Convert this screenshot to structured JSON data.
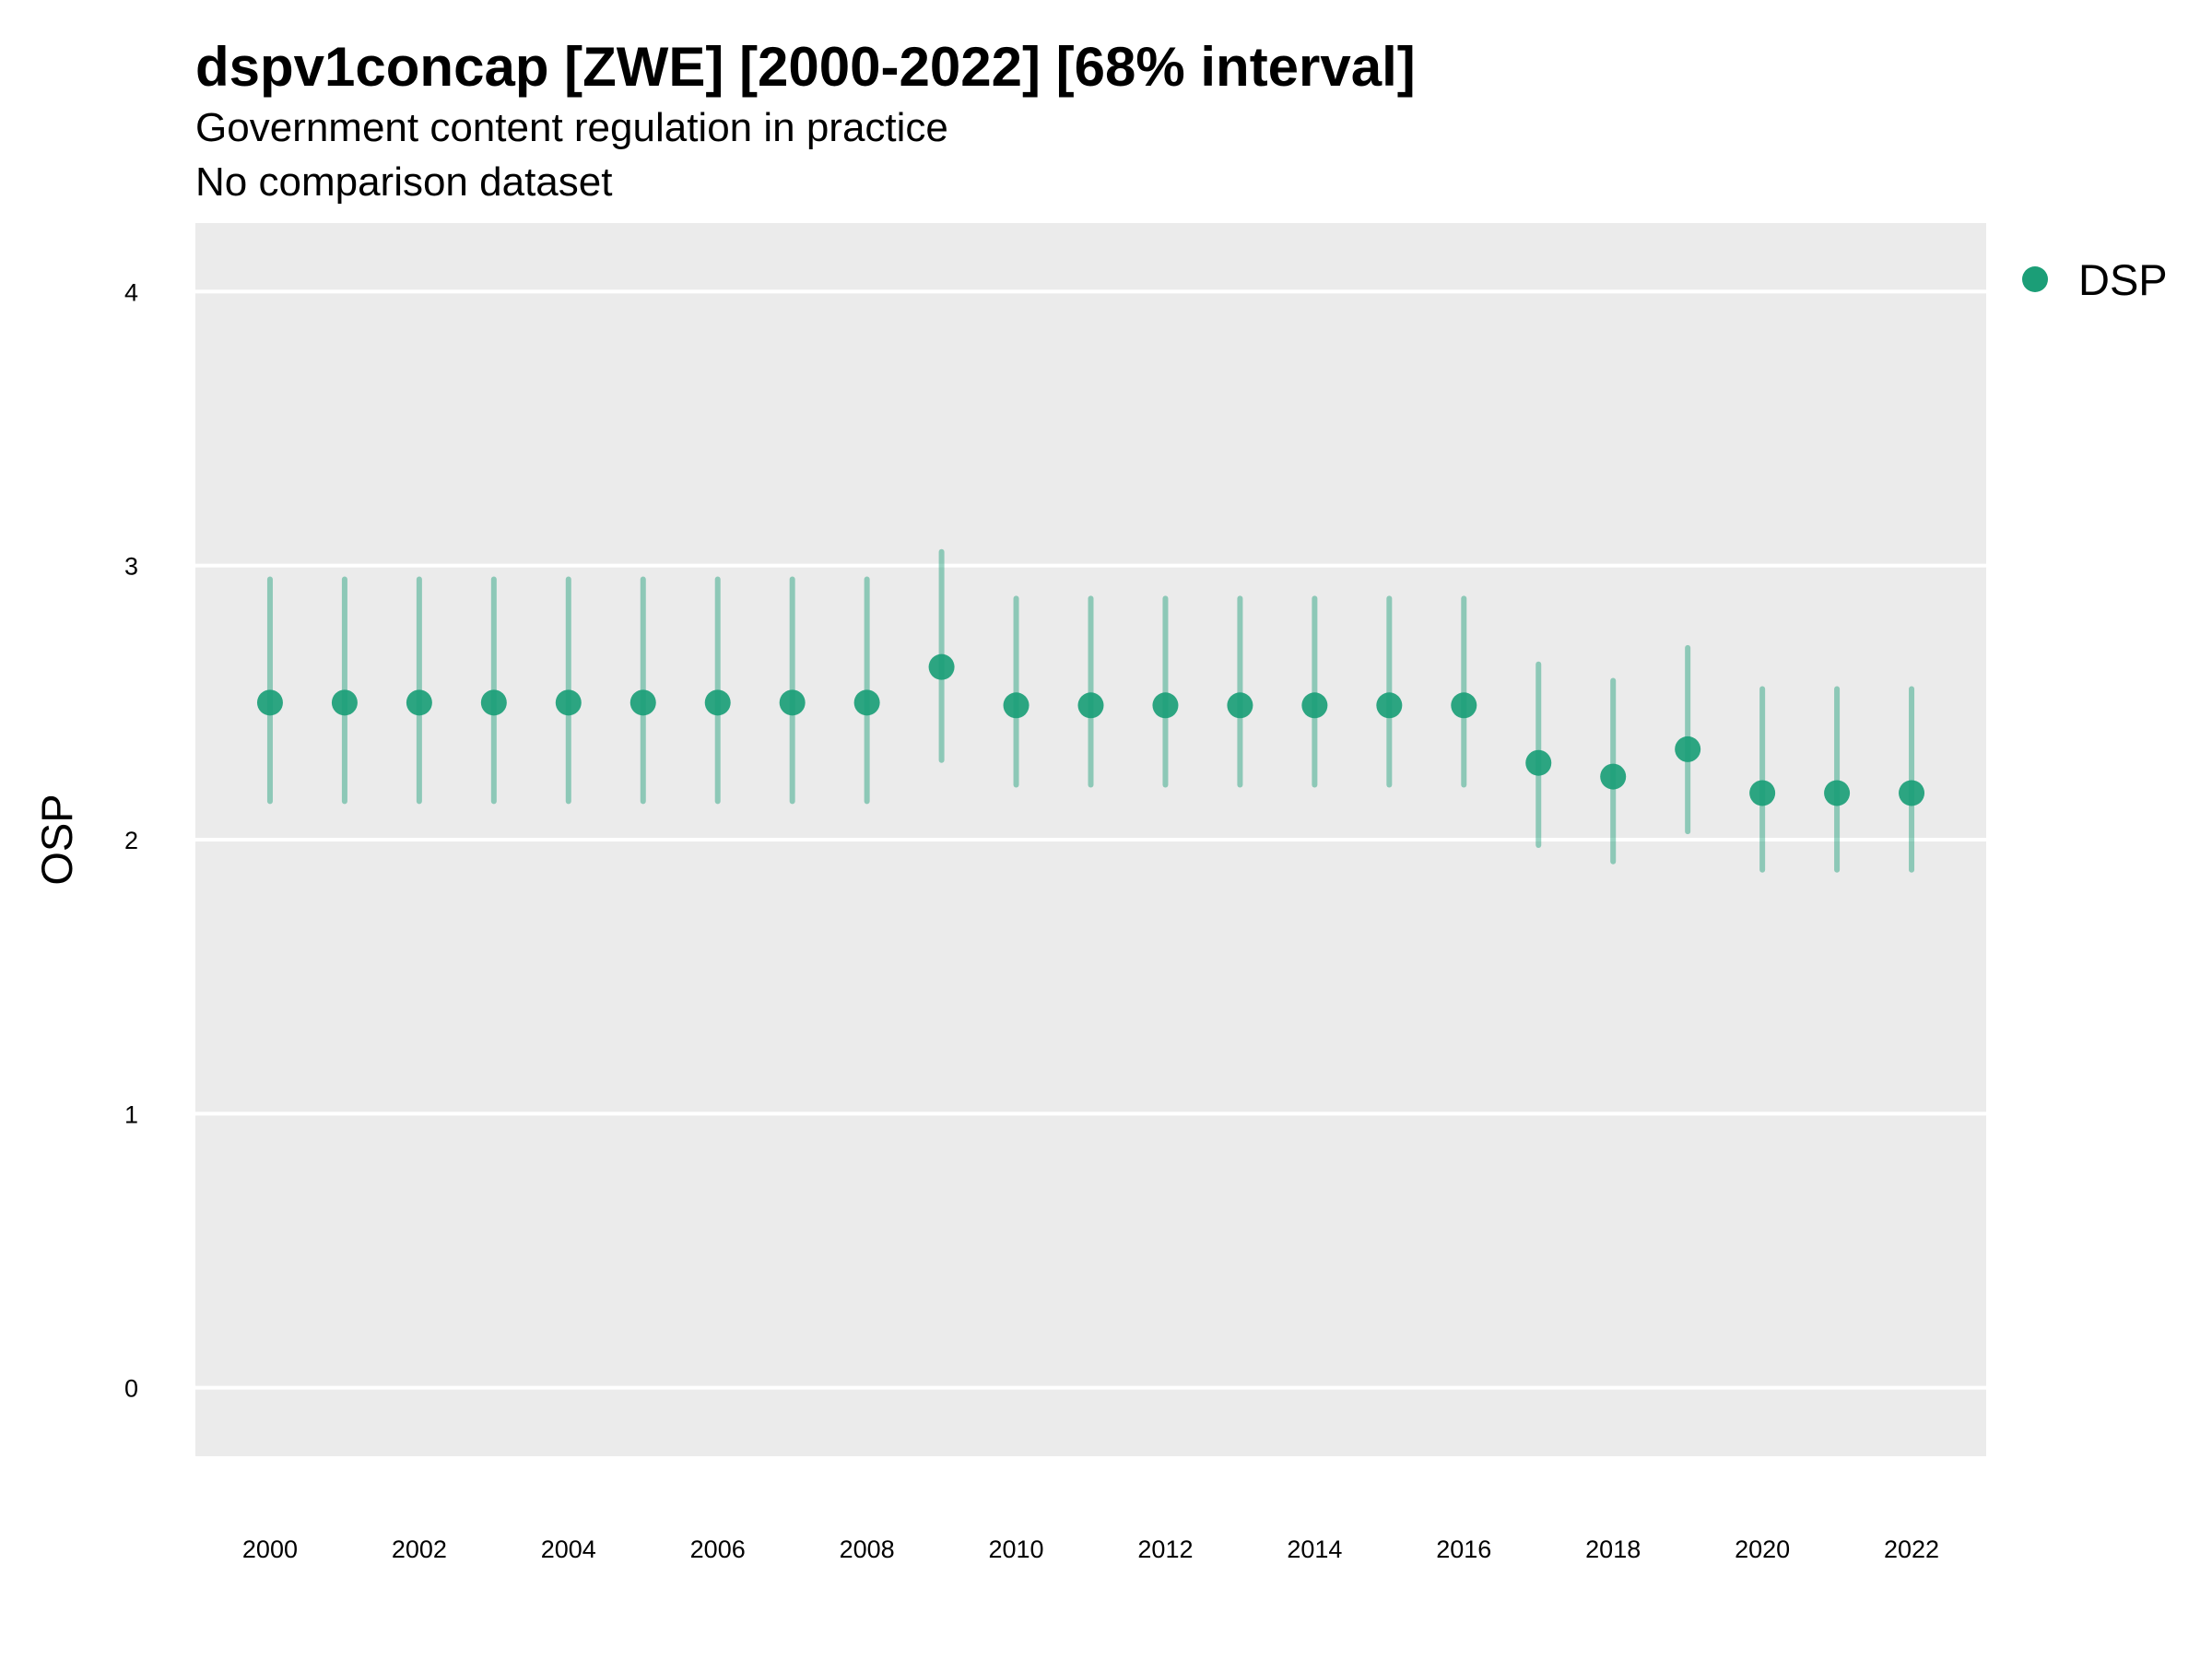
{
  "header": {
    "title": "dspv1concap [ZWE] [2000-2022] [68% interval]",
    "subtitle": "Government content regulation in practice",
    "caption": "No comparison dataset"
  },
  "colors": {
    "point": "#1b9e77",
    "panel": "#ebebeb",
    "grid": "#ffffff"
  },
  "chart_data": {
    "type": "scatter",
    "ylabel": "OSP",
    "xlabel": "",
    "ylim": [
      -0.25,
      4.25
    ],
    "xlim": [
      1999,
      2023
    ],
    "yticks": [
      0,
      1,
      2,
      3,
      4
    ],
    "xticks": [
      2000,
      2002,
      2004,
      2006,
      2008,
      2010,
      2012,
      2014,
      2016,
      2018,
      2020,
      2022
    ],
    "grid": true,
    "legend_position": "right",
    "series": [
      {
        "name": "DSP",
        "x": [
          2000,
          2001,
          2002,
          2003,
          2004,
          2005,
          2006,
          2007,
          2008,
          2009,
          2010,
          2011,
          2012,
          2013,
          2014,
          2015,
          2016,
          2017,
          2018,
          2019,
          2020,
          2021,
          2022
        ],
        "y": [
          2.5,
          2.5,
          2.5,
          2.5,
          2.5,
          2.5,
          2.5,
          2.5,
          2.5,
          2.63,
          2.49,
          2.49,
          2.49,
          2.49,
          2.49,
          2.49,
          2.49,
          2.28,
          2.23,
          2.33,
          2.17,
          2.17,
          2.17
        ],
        "lower": [
          2.14,
          2.14,
          2.14,
          2.14,
          2.14,
          2.14,
          2.14,
          2.14,
          2.14,
          2.29,
          2.2,
          2.2,
          2.2,
          2.2,
          2.2,
          2.2,
          2.2,
          1.98,
          1.92,
          2.03,
          1.89,
          1.89,
          1.89
        ],
        "upper": [
          2.95,
          2.95,
          2.95,
          2.95,
          2.95,
          2.95,
          2.95,
          2.95,
          2.95,
          3.05,
          2.88,
          2.88,
          2.88,
          2.88,
          2.88,
          2.88,
          2.88,
          2.64,
          2.58,
          2.7,
          2.55,
          2.55,
          2.55
        ]
      }
    ]
  }
}
